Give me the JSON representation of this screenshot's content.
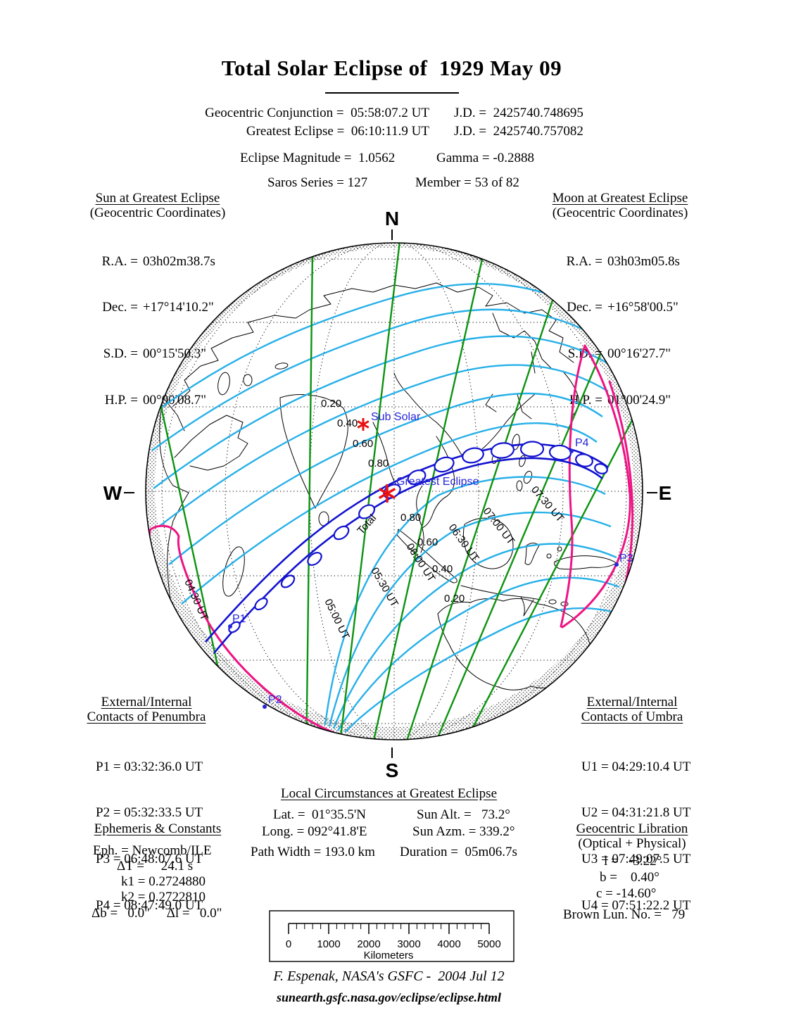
{
  "title": "Total Solar Eclipse of  1929 May 09",
  "header": {
    "conjunction": "Geocentric Conjunction =  05:58:07.2 UT",
    "conjunction_jd": "J.D. =  2425740.748695",
    "greatest": "Greatest Eclipse =  06:10:11.9 UT",
    "greatest_jd": "J.D. =  2425740.757082",
    "magnitude": "Eclipse Magnitude =  1.0562",
    "gamma": "Gamma = -0.2888",
    "saros": "Saros Series = 127",
    "member": "Member = 53 of 82"
  },
  "sun_block": {
    "title": "Sun at Greatest Eclipse",
    "subtitle": "(Geocentric Coordinates)",
    "rows": [
      {
        "label": "R.A. =",
        "value": "03h02m38.7s"
      },
      {
        "label": "Dec. =",
        "value": "+17°14'10.2\""
      },
      {
        "label": "S.D. =",
        "value": "00°15'50.3\""
      },
      {
        "label": "H.P. =",
        "value": "00°00'08.7\""
      }
    ]
  },
  "moon_block": {
    "title": "Moon at Greatest Eclipse",
    "subtitle": "(Geocentric Coordinates)",
    "rows": [
      {
        "label": "R.A. =",
        "value": "03h03m05.8s"
      },
      {
        "label": "Dec. =",
        "value": "+16°58'00.5\""
      },
      {
        "label": "S.D. =",
        "value": "00°16'27.7\""
      },
      {
        "label": "H.P. =",
        "value": "01°00'24.9\""
      }
    ]
  },
  "penumbra_block": {
    "title1": "External/Internal",
    "title2": "Contacts of Penumbra",
    "rows": [
      "P1 = 03:32:36.0 UT",
      "P2 = 05:32:33.5 UT",
      "P3 = 06:48:07.6 UT",
      "P4 = 08:47:49.0 UT"
    ]
  },
  "umbra_block": {
    "title1": "External/Internal",
    "title2": "Contacts of Umbra",
    "rows": [
      "U1 = 04:29:10.4 UT",
      "U2 = 04:31:21.8 UT",
      "U3 = 07:49:07.5 UT",
      "U4 = 07:51:22.2 UT"
    ]
  },
  "local_block": {
    "title": "Local Circumstances at Greatest Eclipse",
    "lat": "Lat. =  01°35.5'N",
    "sun_alt": "Sun Alt. =   73.2°",
    "long": "Long. = 092°41.8'E",
    "sun_azm": "Sun Azm. = 339.2°",
    "path_width": "Path Width = 193.0 km",
    "duration": "Duration =  05m06.7s"
  },
  "ephemeris_block": {
    "title": "Ephemeris & Constants",
    "rows": [
      "Eph. = Newcomb/ILE",
      "ΔT =     24.1 s",
      "k1 = 0.2724880",
      "k2 = 0.2722810",
      "Δb =   0.0\"     Δl =   0.0\""
    ]
  },
  "libration_block": {
    "title": "Geocentric Libration",
    "subtitle": "(Optical + Physical)",
    "rows": [
      "l =   -3.22°",
      "b =    0.40°",
      "c = -14.60°"
    ],
    "brown": "Brown Lun. No. =   79"
  },
  "map": {
    "compass": {
      "n": "N",
      "s": "S",
      "e": "E",
      "w": "W"
    },
    "labels": {
      "sub_solar": "Sub Solar",
      "greatest_eclipse": "Greatest Eclipse",
      "total": "Total",
      "p1": "P1",
      "p2": "P2",
      "p3": "P3",
      "p4": "P4"
    },
    "ut_labels": [
      "04:30 UT",
      "05:00 UT",
      "05:30 UT",
      "06:00 UT",
      "06:30 UT",
      "07:00 UT",
      "07:30 UT"
    ],
    "magnitude_labels_upper": [
      "0.20",
      "0.40",
      "0.60",
      "0.80"
    ],
    "magnitude_labels_lower": [
      "0.80",
      "0.60",
      "0.40",
      "0.20"
    ],
    "colors": {
      "magnitude_contour": "#27b0e8",
      "time_contour": "#0c9310",
      "umbra_path": "#1212d0",
      "penumbra_limit": "#ee1384",
      "marker_red": "#e81111",
      "map_label_blue": "#2626d8"
    }
  },
  "scale_bar": {
    "ticks": [
      "0",
      "1000",
      "2000",
      "3000",
      "4000",
      "5000"
    ],
    "unit": "Kilometers"
  },
  "footer": {
    "credit": "F. Espenak, NASA's GSFC -  2004 Jul 12",
    "url": "sunearth.gsfc.nasa.gov/eclipse/eclipse.html"
  }
}
